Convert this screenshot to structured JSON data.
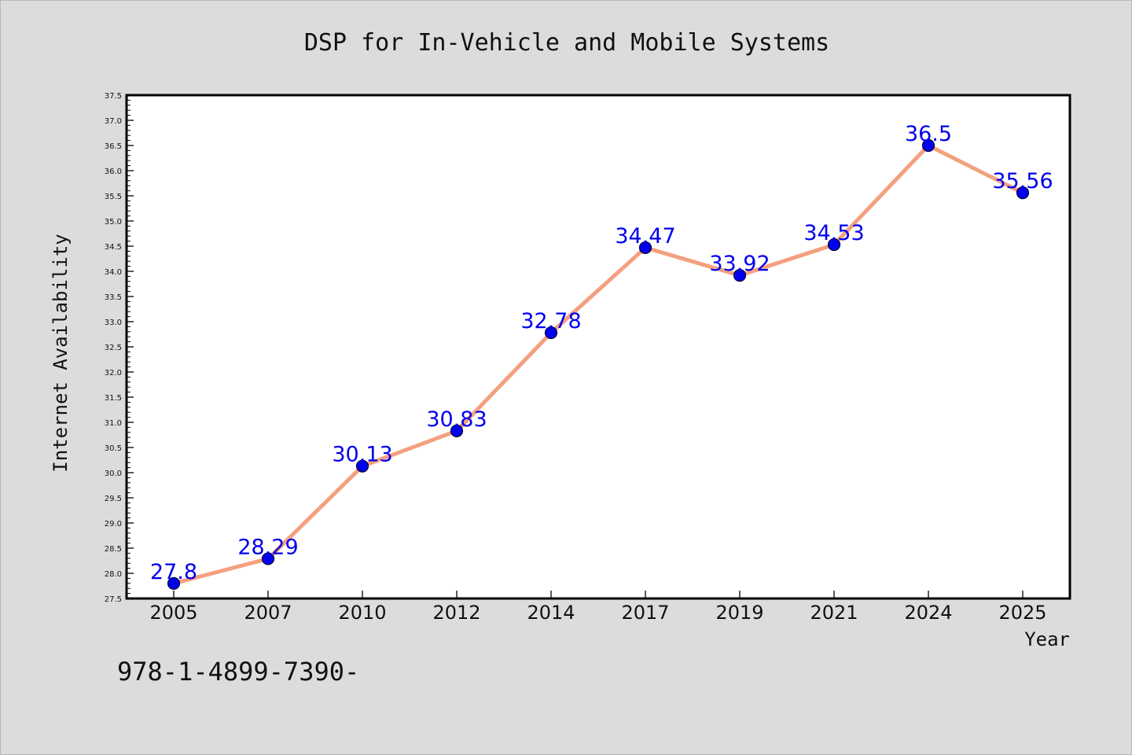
{
  "chart_data": {
    "type": "line",
    "title": "DSP for In-Vehicle and Mobile Systems",
    "xlabel": "Year",
    "ylabel": "Internet Availability",
    "categories": [
      "2005",
      "2007",
      "2010",
      "2012",
      "2014",
      "2017",
      "2019",
      "2021",
      "2024",
      "2025"
    ],
    "values": [
      27.8,
      28.29,
      30.13,
      30.83,
      32.78,
      34.47,
      33.92,
      34.53,
      36.5,
      35.56
    ],
    "data_labels": [
      "27.8",
      "28.29",
      "30.13",
      "30.83",
      "32.78",
      "34.47",
      "33.92",
      "34.53",
      "36.5",
      "35.56"
    ],
    "ylim": [
      27.5,
      37.5
    ],
    "y_ticks": [
      "27.5",
      "28.0",
      "28.5",
      "29.0",
      "29.5",
      "30.0",
      "30.5",
      "31.0",
      "31.5",
      "32.0",
      "32.5",
      "33.0",
      "33.5",
      "34.0",
      "34.5",
      "35.0",
      "35.5",
      "36.0",
      "36.5",
      "37.0",
      "37.5"
    ],
    "grid": false,
    "legend": "none",
    "line_color": "#f4a07f",
    "marker_color": "#0000ee",
    "label_color": "#0000ee",
    "footnote": "978-1-4899-7390-"
  }
}
